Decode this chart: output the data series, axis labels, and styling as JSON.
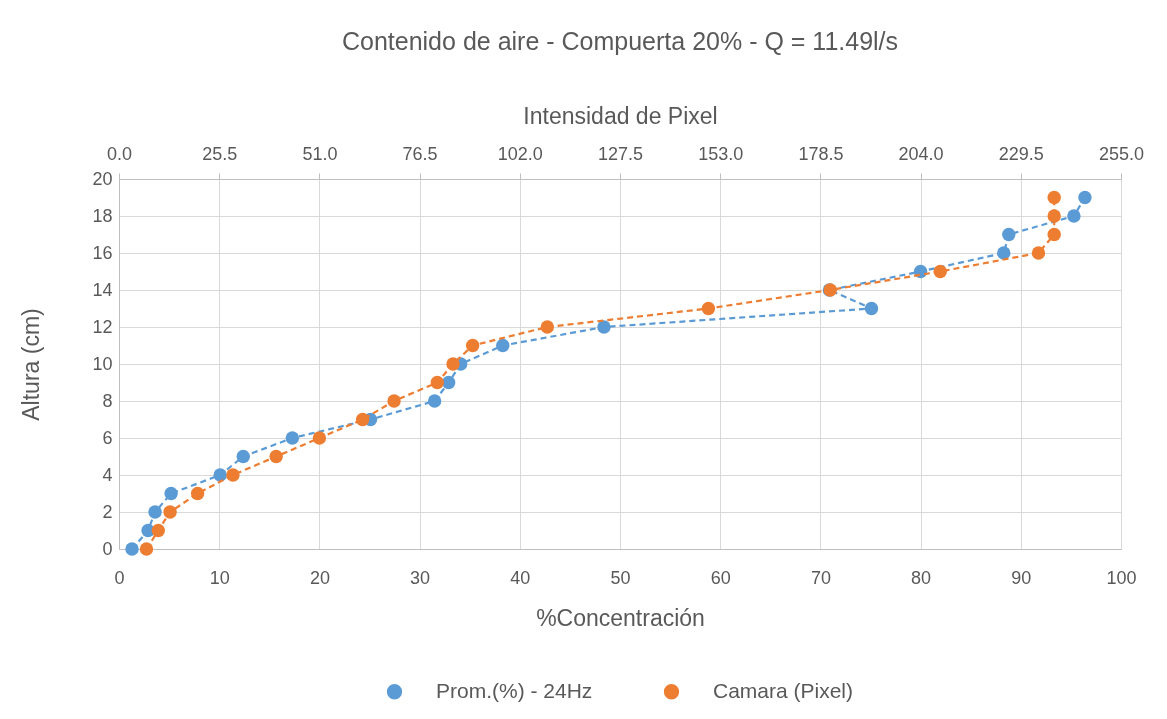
{
  "chart_data": {
    "type": "line",
    "title": "Contenido de aire - Compuerta 20% - Q = 11.49l/s",
    "xlabel": "%Concentración",
    "x2label": "Intensidad de Pixel",
    "ylabel": "Altura (cm)",
    "xlim": [
      0,
      100
    ],
    "xticks": [
      0,
      10,
      20,
      30,
      40,
      50,
      60,
      70,
      80,
      90,
      100
    ],
    "x2lim": [
      0,
      255
    ],
    "x2ticks": [
      {
        "value": 0,
        "label": "0.0"
      },
      25.5,
      {
        "value": 51,
        "label": "51.0"
      },
      76.5,
      {
        "value": 102,
        "label": "102.0"
      },
      127.5,
      {
        "value": 153,
        "label": "153.0"
      },
      178.5,
      {
        "value": 204,
        "label": "204.0"
      },
      229.5,
      {
        "value": 255,
        "label": "255.0"
      }
    ],
    "ylim": [
      0,
      20
    ],
    "yticks": [
      0,
      2,
      4,
      6,
      8,
      10,
      12,
      14,
      16,
      18,
      20
    ],
    "grid": true,
    "legend": "bottom",
    "marker": "circle",
    "line_style": "dashed",
    "series": [
      {
        "name": "Prom.(%) - 24Hz",
        "color": "#5b9bd5",
        "x": [
          1.3,
          2.9,
          3.6,
          5.2,
          10.1,
          12.4,
          17.3,
          25.1,
          31.5,
          32.9,
          34.1,
          38.3,
          48.4,
          75.1,
          70.9,
          80.0,
          88.3,
          88.8,
          95.3,
          96.4
        ],
        "values": [
          0,
          1,
          2,
          3,
          4,
          5,
          6,
          7,
          8,
          9,
          10,
          11,
          12,
          13,
          14,
          15,
          16,
          17,
          18,
          19
        ]
      },
      {
        "name": "Camara (Pixel)",
        "color": "#ed7d31",
        "axis": "x2",
        "x": [
          7,
          10,
          13,
          20,
          29,
          40,
          51,
          62,
          70,
          81,
          85,
          90,
          109,
          150,
          181,
          209,
          234,
          238,
          238,
          238
        ],
        "values": [
          0,
          1,
          2,
          3,
          4,
          5,
          6,
          7,
          8,
          9,
          10,
          11,
          12,
          13,
          14,
          15,
          16,
          17,
          18,
          19
        ]
      }
    ]
  }
}
